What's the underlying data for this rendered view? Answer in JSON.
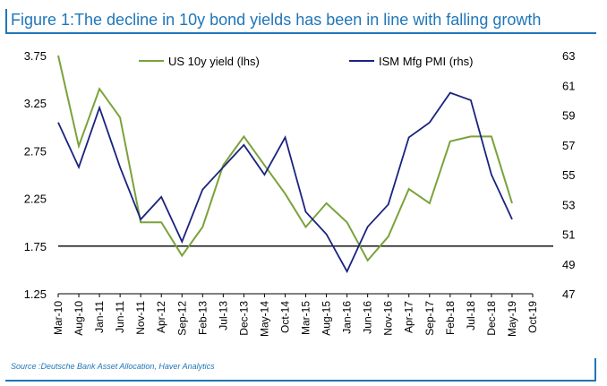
{
  "header": {
    "title": "Figure 1:The decline in 10y bond yields has been in line with falling growth"
  },
  "footer": {
    "source": "Source :Deutsche Bank Asset Allocation, Haver Analytics"
  },
  "colors": {
    "accent": "#1f76b8",
    "yield": "#7aa33a",
    "pmi": "#1a237e",
    "axis": "#000000"
  },
  "chart_data": {
    "type": "line",
    "legend_placement": "top",
    "grid": false,
    "x": [
      "Mar-10",
      "Aug-10",
      "Jan-11",
      "Jun-11",
      "Nov-11",
      "Apr-12",
      "Sep-12",
      "Feb-13",
      "Jul-13",
      "Dec-13",
      "May-14",
      "Oct-14",
      "Mar-15",
      "Aug-15",
      "Jan-16",
      "Jun-16",
      "Nov-16",
      "Apr-17",
      "Sep-17",
      "Feb-18",
      "Jul-18",
      "Dec-18",
      "May-19",
      "Oct-19"
    ],
    "x_ticks": [
      "Mar-10",
      "Aug-10",
      "Jan-11",
      "Jun-11",
      "Nov-11",
      "Apr-12",
      "Sep-12",
      "Feb-13",
      "Jul-13",
      "Dec-13",
      "May-14",
      "Oct-14",
      "Mar-15",
      "Aug-15",
      "Jan-16",
      "Jun-16",
      "Nov-16",
      "Apr-17",
      "Sep-17",
      "Feb-18",
      "Jul-18",
      "Dec-18",
      "May-19",
      "Oct-19"
    ],
    "y_left": {
      "ticks": [
        "3.75",
        "3.25",
        "2.75",
        "2.25",
        "1.75",
        "1.25"
      ],
      "range": [
        1.25,
        3.75
      ]
    },
    "y_right": {
      "ticks": [
        "63",
        "61",
        "59",
        "57",
        "55",
        "53",
        "51",
        "49",
        "47"
      ],
      "range": [
        47,
        63
      ]
    },
    "reference_line": 1.75,
    "series": [
      {
        "name": "US 10y yield (lhs)",
        "axis": "left",
        "values": [
          3.75,
          2.8,
          3.4,
          3.1,
          2.0,
          2.0,
          1.65,
          1.95,
          2.6,
          2.9,
          2.6,
          2.3,
          1.95,
          2.2,
          2.0,
          1.6,
          1.85,
          2.35,
          2.2,
          2.85,
          2.9,
          2.9,
          2.2,
          null
        ]
      },
      {
        "name": "ISM Mfg PMI (rhs)",
        "axis": "right",
        "values": [
          58.5,
          55.5,
          59.5,
          55.5,
          52.0,
          53.5,
          50.5,
          54.0,
          55.5,
          57.0,
          55.0,
          57.5,
          52.5,
          51.0,
          48.5,
          51.5,
          53.0,
          57.5,
          58.5,
          60.5,
          60.0,
          55.0,
          52.0,
          null
        ]
      }
    ]
  }
}
